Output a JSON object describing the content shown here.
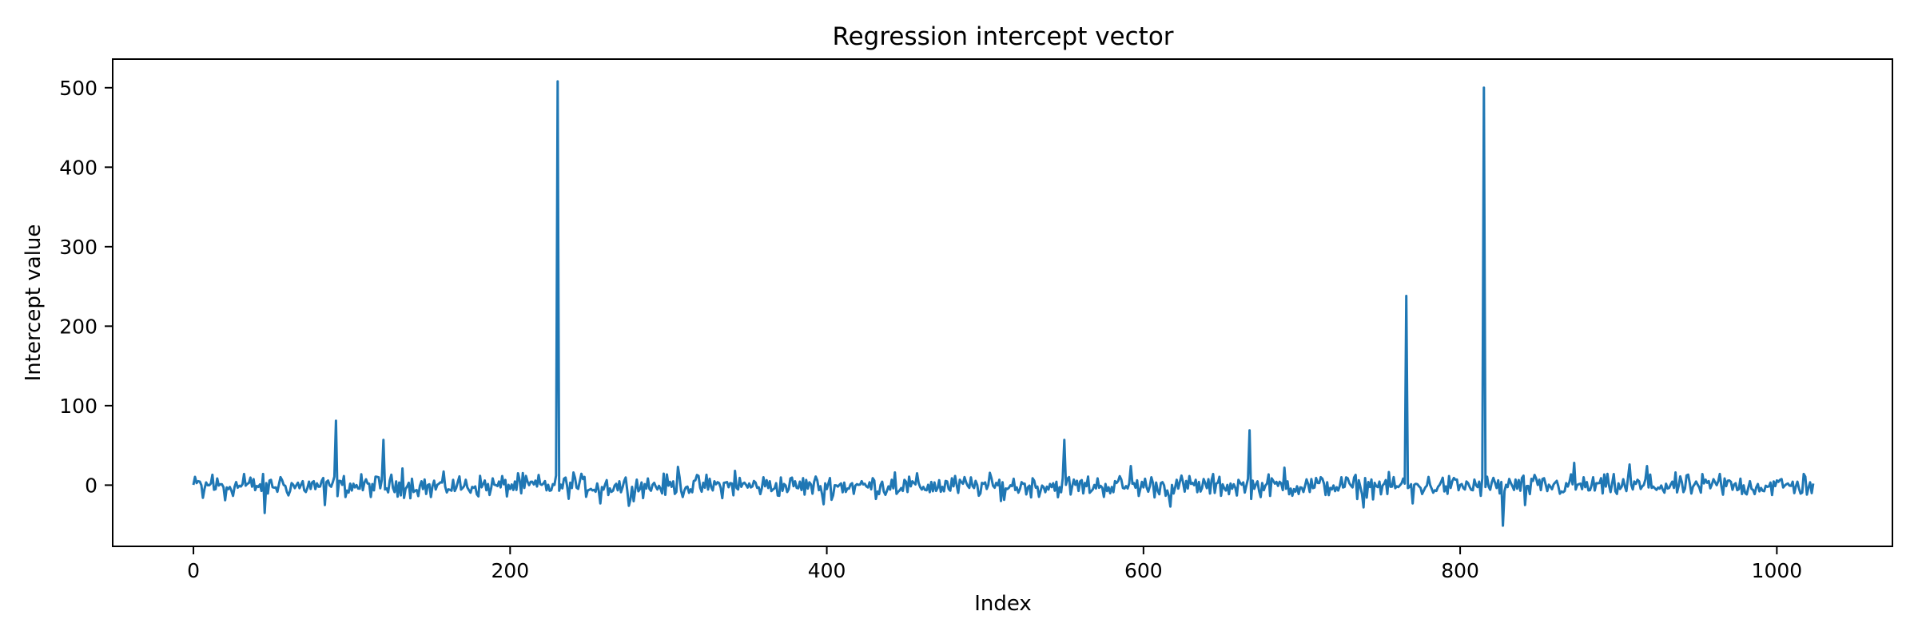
{
  "chart_data": {
    "type": "line",
    "title": "Regression intercept vector",
    "xlabel": "Index",
    "ylabel": "Intercept value",
    "xlim": [
      -51,
      1073
    ],
    "ylim": [
      -77,
      536
    ],
    "xticks": [
      0,
      200,
      400,
      600,
      800,
      1000
    ],
    "yticks": [
      0,
      100,
      200,
      300,
      400,
      500
    ],
    "grid": false,
    "legend": "none",
    "color": "#1f77b4",
    "n_points": 1024,
    "baseline": {
      "center": -1,
      "amplitude": 9
    },
    "key_points": [
      {
        "x": 3,
        "y": 5
      },
      {
        "x": 6,
        "y": -16
      },
      {
        "x": 12,
        "y": 13
      },
      {
        "x": 20,
        "y": -19
      },
      {
        "x": 32,
        "y": 14
      },
      {
        "x": 45,
        "y": -35
      },
      {
        "x": 55,
        "y": 10
      },
      {
        "x": 83,
        "y": -25
      },
      {
        "x": 90,
        "y": 81
      },
      {
        "x": 120,
        "y": 57
      },
      {
        "x": 132,
        "y": 21
      },
      {
        "x": 150,
        "y": -15
      },
      {
        "x": 205,
        "y": 15
      },
      {
        "x": 230,
        "y": 508
      },
      {
        "x": 240,
        "y": 16
      },
      {
        "x": 257,
        "y": -23
      },
      {
        "x": 275,
        "y": -26
      },
      {
        "x": 306,
        "y": 23
      },
      {
        "x": 342,
        "y": 18
      },
      {
        "x": 398,
        "y": -24
      },
      {
        "x": 443,
        "y": 16
      },
      {
        "x": 510,
        "y": -20
      },
      {
        "x": 550,
        "y": 57
      },
      {
        "x": 592,
        "y": 24
      },
      {
        "x": 617,
        "y": -27
      },
      {
        "x": 667,
        "y": 69
      },
      {
        "x": 689,
        "y": 22
      },
      {
        "x": 739,
        "y": -28
      },
      {
        "x": 766,
        "y": 238
      },
      {
        "x": 770,
        "y": -23
      },
      {
        "x": 815,
        "y": 500
      },
      {
        "x": 827,
        "y": -51
      },
      {
        "x": 841,
        "y": -25
      },
      {
        "x": 872,
        "y": 28
      },
      {
        "x": 907,
        "y": 26
      },
      {
        "x": 918,
        "y": 24
      },
      {
        "x": 964,
        "y": 14
      },
      {
        "x": 1017,
        "y": 14
      },
      {
        "x": 1023,
        "y": 2
      }
    ]
  }
}
